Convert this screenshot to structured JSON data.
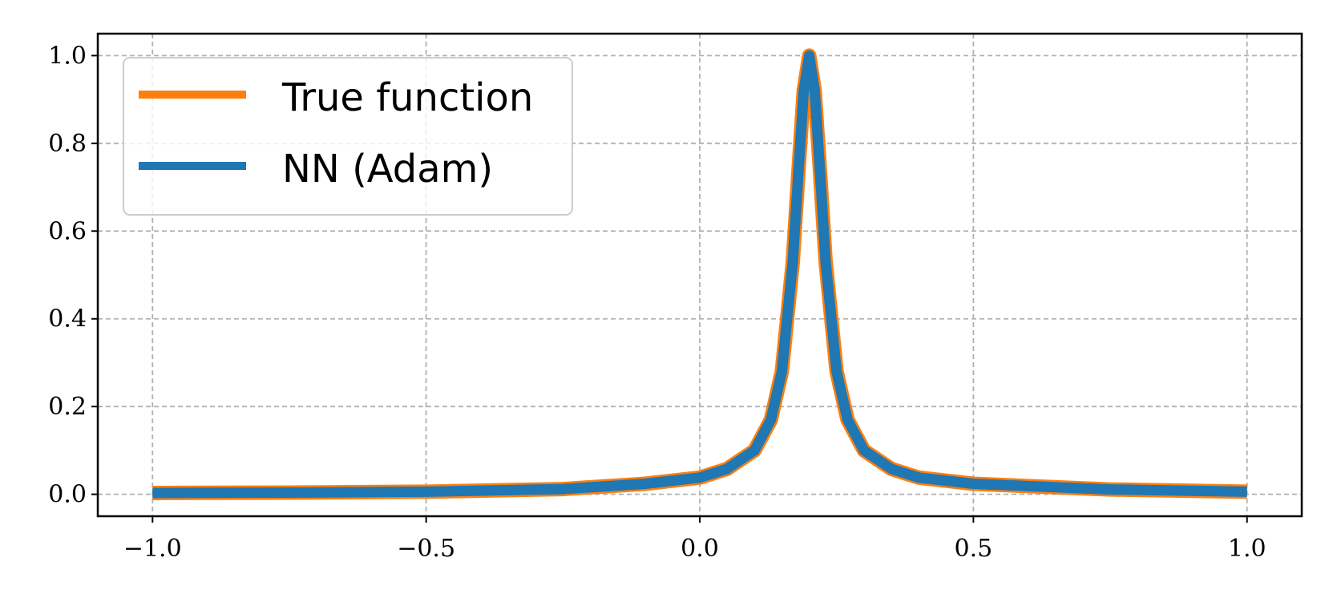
{
  "chart_data": {
    "type": "line",
    "title": "",
    "xlabel": "",
    "ylabel": "",
    "xlim": [
      -1.1,
      1.1
    ],
    "ylim": [
      -0.05,
      1.05
    ],
    "grid": true,
    "grid_style": "dashed",
    "legend_position": "top-left",
    "x_ticks": [
      -1.0,
      -0.5,
      0.0,
      0.5,
      1.0
    ],
    "x_tick_labels": [
      "−1.0",
      "−0.5",
      "0.0",
      "0.5",
      "1.0"
    ],
    "y_ticks": [
      0.0,
      0.2,
      0.4,
      0.6,
      0.8,
      1.0
    ],
    "y_tick_labels": [
      "0.0",
      "0.2",
      "0.4",
      "0.6",
      "0.8",
      "1.0"
    ],
    "x": [
      -1.0,
      -0.75,
      -0.5,
      -0.25,
      -0.1,
      0.0,
      0.05,
      0.1,
      0.13,
      0.15,
      0.17,
      0.18,
      0.19,
      0.2,
      0.21,
      0.22,
      0.23,
      0.25,
      0.27,
      0.3,
      0.35,
      0.4,
      0.5,
      0.75,
      1.0
    ],
    "series": [
      {
        "name": "True function",
        "color": "#ff7f0e",
        "values": [
          0.003,
          0.004,
          0.006,
          0.012,
          0.024,
          0.038,
          0.058,
          0.1,
          0.17,
          0.28,
          0.53,
          0.73,
          0.92,
          1.0,
          0.92,
          0.73,
          0.53,
          0.28,
          0.17,
          0.1,
          0.058,
          0.038,
          0.024,
          0.011,
          0.006
        ]
      },
      {
        "name": "NN (Adam)",
        "color": "#1f77b4",
        "values": [
          0.003,
          0.004,
          0.006,
          0.012,
          0.024,
          0.038,
          0.058,
          0.1,
          0.17,
          0.28,
          0.53,
          0.73,
          0.92,
          1.0,
          0.92,
          0.73,
          0.53,
          0.28,
          0.17,
          0.1,
          0.058,
          0.038,
          0.024,
          0.011,
          0.006
        ]
      }
    ]
  }
}
